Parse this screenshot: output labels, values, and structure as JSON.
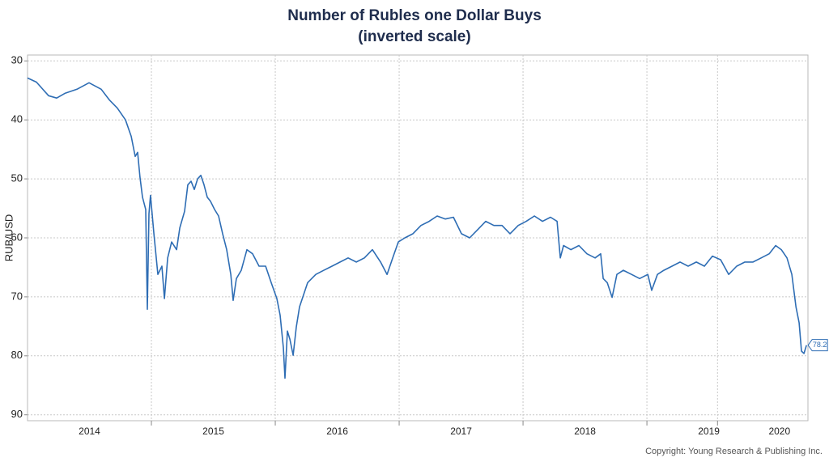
{
  "chart_data": {
    "type": "line",
    "title": "Number of Rubles one Dollar Buys",
    "subtitle": "(inverted scale)",
    "y_label": "RUB/USD",
    "copyright": "Copyright: Young Research & Publishing Inc.",
    "y_inverted": true,
    "grid": true,
    "xlim": [
      2014,
      2020.3
    ],
    "ylim": [
      29,
      91
    ],
    "yticks": [
      30,
      40,
      50,
      60,
      70,
      80,
      90
    ],
    "xticks": [
      {
        "value": 2014.5,
        "label": "2014"
      },
      {
        "value": 2015.5,
        "label": "2015"
      },
      {
        "value": 2016.5,
        "label": "2016"
      },
      {
        "value": 2017.5,
        "label": "2017"
      },
      {
        "value": 2018.5,
        "label": "2018"
      },
      {
        "value": 2019.5,
        "label": "2019"
      },
      {
        "value": 2020.07,
        "label": "2020"
      }
    ],
    "series": [
      {
        "name": "RUB/USD",
        "color": "#2e6db4",
        "end_label": "78.2",
        "x": [
          2014.0,
          2014.072,
          2014.17,
          2014.235,
          2014.301,
          2014.399,
          2014.497,
          2014.595,
          2014.66,
          2014.725,
          2014.791,
          2014.837,
          2014.869,
          2014.889,
          2014.908,
          2014.928,
          2014.954,
          2014.967,
          2014.98,
          2014.993,
          2015.02,
          2015.052,
          2015.085,
          2015.105,
          2015.131,
          2015.163,
          2015.203,
          2015.229,
          2015.268,
          2015.294,
          2015.32,
          2015.346,
          2015.373,
          2015.399,
          2015.425,
          2015.451,
          2015.477,
          2015.51,
          2015.542,
          2015.575,
          2015.608,
          2015.641,
          2015.66,
          2015.686,
          2015.725,
          2015.771,
          2015.817,
          2015.869,
          2015.922,
          2015.967,
          2016.013,
          2016.039,
          2016.065,
          2016.078,
          2016.098,
          2016.118,
          2016.144,
          2016.17,
          2016.196,
          2016.229,
          2016.261,
          2016.327,
          2016.392,
          2016.458,
          2016.523,
          2016.588,
          2016.654,
          2016.719,
          2016.784,
          2016.85,
          2016.902,
          2016.948,
          2016.993,
          2017.046,
          2017.111,
          2017.176,
          2017.242,
          2017.307,
          2017.373,
          2017.438,
          2017.503,
          2017.569,
          2017.634,
          2017.699,
          2017.765,
          2017.83,
          2017.895,
          2017.961,
          2018.026,
          2018.092,
          2018.157,
          2018.222,
          2018.275,
          2018.301,
          2018.327,
          2018.386,
          2018.451,
          2018.516,
          2018.582,
          2018.627,
          2018.647,
          2018.68,
          2018.719,
          2018.758,
          2018.81,
          2018.876,
          2018.941,
          2019.007,
          2019.039,
          2019.085,
          2019.137,
          2019.203,
          2019.268,
          2019.333,
          2019.399,
          2019.464,
          2019.529,
          2019.595,
          2019.66,
          2019.725,
          2019.791,
          2019.856,
          2019.922,
          2019.987,
          2020.039,
          2020.085,
          2020.131,
          2020.17,
          2020.203,
          2020.229,
          2020.248,
          2020.268,
          2020.288
        ],
        "values": [
          32.9,
          33.6,
          35.9,
          36.3,
          35.5,
          34.8,
          33.7,
          34.8,
          36.6,
          38,
          40,
          42.8,
          46.2,
          45.5,
          49.7,
          53.1,
          55.2,
          72.1,
          55.9,
          52.8,
          59.3,
          66.2,
          64.8,
          70.3,
          63.4,
          60.7,
          62,
          58.3,
          55.5,
          51,
          50.4,
          51.8,
          50,
          49.4,
          51,
          53.1,
          53.8,
          55.2,
          56.3,
          59.3,
          62,
          66.2,
          70.6,
          66.9,
          65.5,
          62,
          62.7,
          64.8,
          64.8,
          67.6,
          70.3,
          73.1,
          78.6,
          83.8,
          75.8,
          77.2,
          79.9,
          75.1,
          71.7,
          69.6,
          67.6,
          66.2,
          65.5,
          64.8,
          64.1,
          63.4,
          64.1,
          63.4,
          62,
          64.1,
          66.2,
          63.4,
          60.7,
          60,
          59.3,
          57.9,
          57.2,
          56.3,
          56.8,
          56.5,
          59.3,
          60,
          58.6,
          57.2,
          57.9,
          57.9,
          59.3,
          57.9,
          57.2,
          56.3,
          57.2,
          56.5,
          57.2,
          63.4,
          61.3,
          62,
          61.3,
          62.7,
          63.4,
          62.7,
          66.9,
          67.6,
          70.1,
          66.2,
          65.5,
          66.2,
          66.9,
          66.2,
          68.9,
          66.2,
          65.5,
          64.8,
          64.1,
          64.8,
          64.1,
          64.8,
          63.1,
          63.7,
          66.2,
          64.8,
          64.1,
          64.1,
          63.4,
          62.7,
          61.3,
          62,
          63.4,
          66.2,
          71.7,
          74.4,
          79.2,
          79.6,
          78.2
        ]
      }
    ]
  }
}
